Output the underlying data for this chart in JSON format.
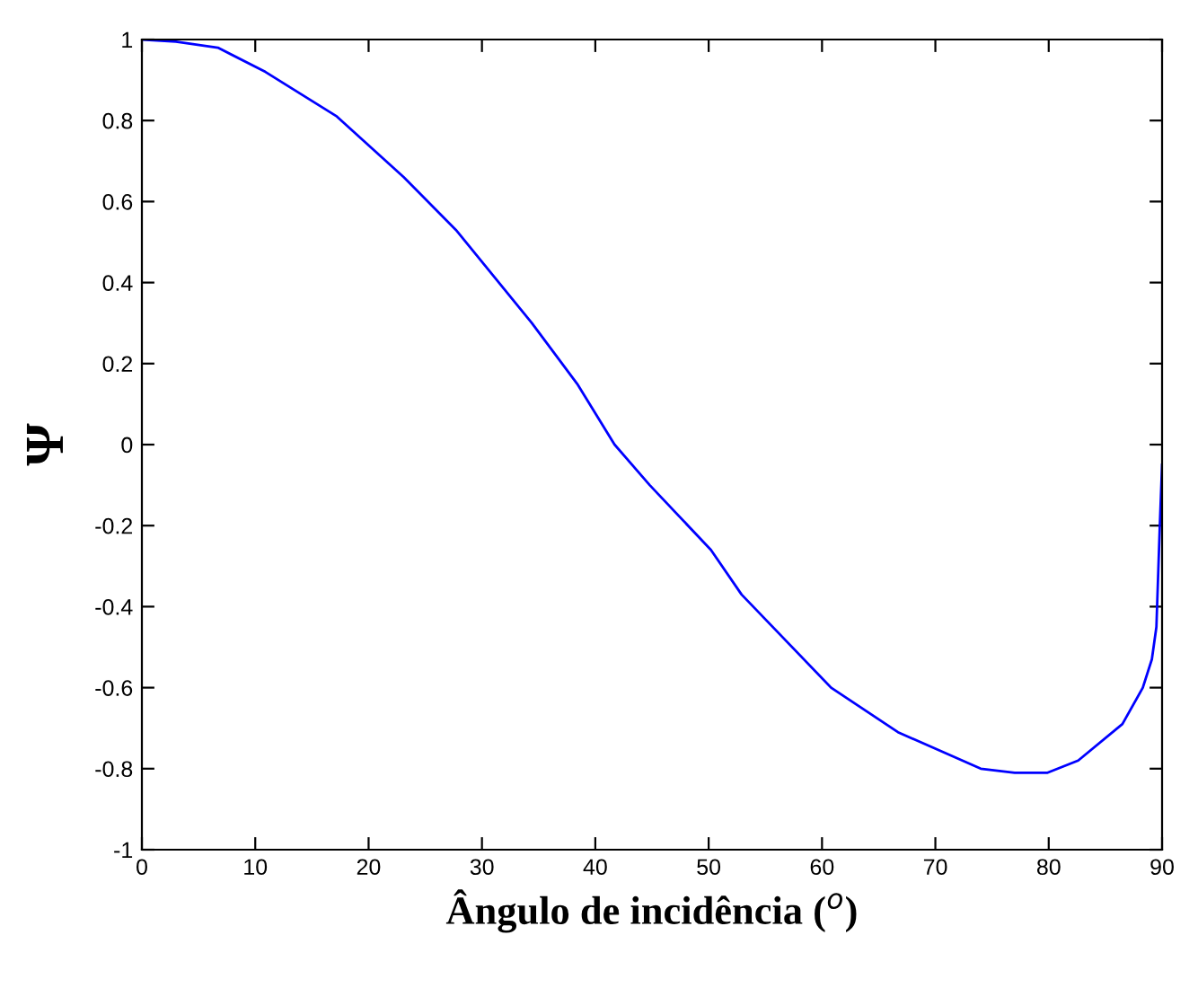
{
  "chart_data": {
    "type": "line",
    "xlabel": "Ângulo de incidência ($^{o}$)",
    "ylabel": "Ψ",
    "xlim": [
      0,
      90
    ],
    "ylim": [
      -1,
      1
    ],
    "xticks": [
      0,
      10,
      20,
      30,
      40,
      50,
      60,
      70,
      80,
      90
    ],
    "yticks": [
      -1,
      -0.8,
      -0.6,
      -0.4,
      -0.2,
      0,
      0.2,
      0.4,
      0.6,
      0.8,
      1
    ],
    "grid": false,
    "legend": false,
    "series": [
      {
        "color": "#0000ff",
        "x": [
          0,
          3,
          6.7,
          10.9,
          17.2,
          23.1,
          27.7,
          34.4,
          38.4,
          41.7,
          44.8,
          50.2,
          52.9,
          60.8,
          66.7,
          74.0,
          77,
          79.9,
          82.6,
          86.5,
          88.3,
          89.1,
          89.5,
          89.8,
          90
        ],
        "values": [
          1,
          0.995,
          0.98,
          0.92,
          0.81,
          0.66,
          0.53,
          0.3,
          0.15,
          0.0,
          -0.1,
          -0.26,
          -0.37,
          -0.6,
          -0.71,
          -0.8,
          -0.81,
          -0.81,
          -0.78,
          -0.69,
          -0.6,
          -0.53,
          -0.45,
          -0.2,
          -0.05
        ]
      }
    ]
  }
}
